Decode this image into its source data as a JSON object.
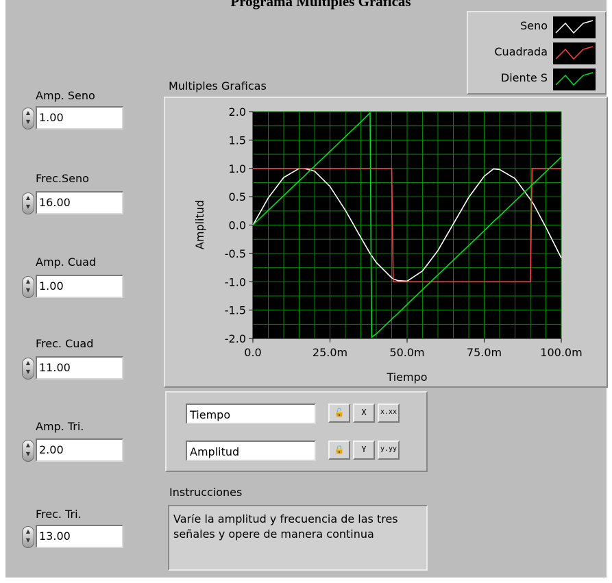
{
  "window": {
    "title": "Programa Multiples Graficas"
  },
  "controls": [
    {
      "label": "Amp. Seno",
      "value": "1.00"
    },
    {
      "label": "Frec.Seno",
      "value": "16.00"
    },
    {
      "label": "Amp. Cuad",
      "value": "1.00"
    },
    {
      "label": "Frec. Cuad",
      "value": "11.00"
    },
    {
      "label": "Amp. Tri.",
      "value": "2.00"
    },
    {
      "label": "Frec. Tri.",
      "value": "13.00"
    }
  ],
  "legend": {
    "items": [
      {
        "name": "Seno",
        "color": "#ffffff"
      },
      {
        "name": "Cuadrada",
        "color": "#ff4040"
      },
      {
        "name": "Diente S",
        "color": "#00e020"
      }
    ]
  },
  "scale_legend": {
    "x_name": "Tiempo",
    "y_name": "Amplitud",
    "x_format_label": "x.xx",
    "y_format_label": "y.yy",
    "x_autoscale_label": "X",
    "y_autoscale_label": "Y"
  },
  "instructions": {
    "label": "Instrucciones",
    "text": "Varíe la amplitud y frecuencia de las tres señales y opere de manera continua"
  },
  "chart_data": {
    "type": "line",
    "title": "Multiples Graficas",
    "xlabel": "Tiempo",
    "ylabel": "Amplitud",
    "xlim": [
      0,
      0.1
    ],
    "ylim": [
      -2,
      2
    ],
    "grid": true,
    "background": "#000000",
    "grid_color": "#008a00",
    "x_ticks": [
      "0.0",
      "25.0m",
      "50.0m",
      "75.0m",
      "100.0m"
    ],
    "y_ticks": [
      "2.0",
      "1.5",
      "1.0",
      "0.5",
      "0.0",
      "-0.5",
      "-1.0",
      "-1.5",
      "-2.0"
    ],
    "x": [
      0,
      0.005,
      0.01,
      0.015,
      0.0166,
      0.02,
      0.025,
      0.03,
      0.035,
      0.038,
      0.0385,
      0.04,
      0.045,
      0.0455,
      0.046,
      0.047,
      0.05,
      0.055,
      0.06,
      0.065,
      0.07,
      0.075,
      0.078,
      0.08,
      0.085,
      0.09,
      0.0905,
      0.091,
      0.095,
      0.1
    ],
    "series": [
      {
        "name": "Seno",
        "color": "#ffffff",
        "values": [
          0,
          0.48,
          0.84,
          0.998,
          1.0,
          0.95,
          0.68,
          0.26,
          -0.22,
          -0.5,
          -0.54,
          -0.66,
          -0.93,
          -0.95,
          -0.96,
          -0.98,
          -0.99,
          -0.81,
          -0.45,
          0.02,
          0.49,
          0.86,
          0.99,
          0.98,
          0.82,
          0.45,
          0.41,
          0.37,
          -0.04,
          -0.58
        ]
      },
      {
        "name": "Cuadrada",
        "color": "#ff4040",
        "values": [
          1,
          1,
          1,
          1,
          1,
          1,
          1,
          1,
          1,
          1,
          1,
          1,
          1,
          -1,
          -1,
          -1,
          -1,
          -1,
          -1,
          -1,
          -1,
          -1,
          -1,
          -1,
          -1,
          -1,
          1,
          1,
          1,
          1
        ]
      },
      {
        "name": "Diente S",
        "color": "#00e020",
        "values": [
          0,
          0.26,
          0.52,
          0.78,
          0.86,
          1.04,
          1.3,
          1.56,
          1.82,
          1.98,
          -1.98,
          -1.92,
          -1.66,
          -1.63,
          -1.61,
          -1.56,
          -1.4,
          -1.14,
          -0.88,
          -0.62,
          -0.36,
          -0.1,
          0.06,
          0.16,
          0.42,
          0.68,
          0.71,
          0.73,
          0.94,
          1.2
        ]
      }
    ]
  }
}
